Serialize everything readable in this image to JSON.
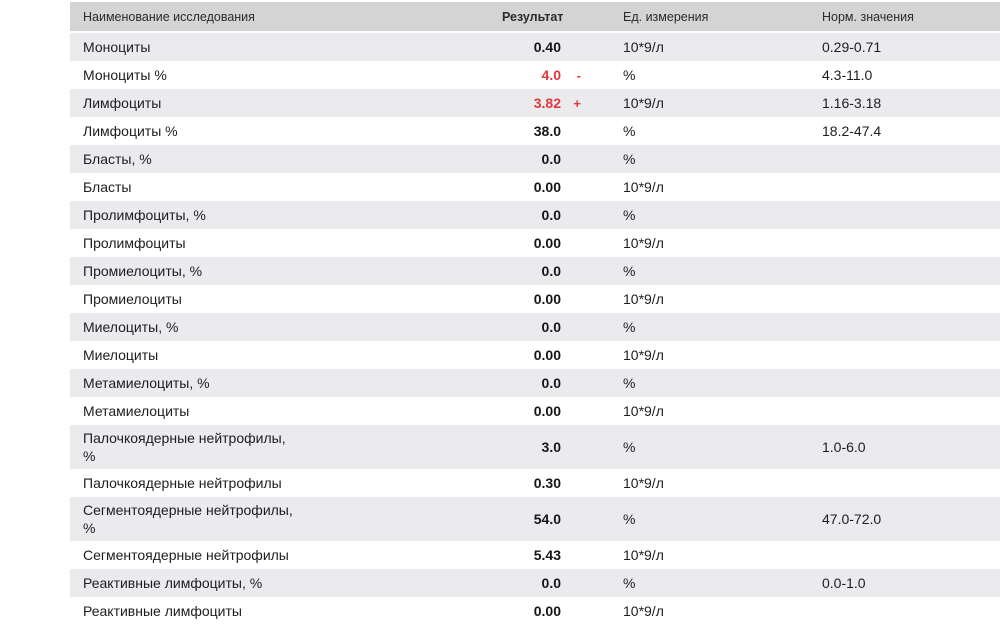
{
  "table": {
    "columns": {
      "name": "Наименование исследования",
      "result": "Результат",
      "unit": "Ед. измерения",
      "norm": "Норм. значения"
    },
    "colors": {
      "header_bg": "#d4d4d5",
      "alt_row_bg": "#ebebed",
      "abnormal_red": "#e0383f",
      "text": "#1d1d1f"
    },
    "rows": [
      {
        "name": "Моноциты",
        "result": "0.40",
        "flag": "",
        "unit": "10*9/л",
        "norm": "0.29-0.71",
        "abnormal": false
      },
      {
        "name": "Моноциты %",
        "result": "4.0",
        "flag": "-",
        "unit": "%",
        "norm": "4.3-11.0",
        "abnormal": true
      },
      {
        "name": "Лимфоциты",
        "result": "3.82",
        "flag": "+",
        "unit": "10*9/л",
        "norm": "1.16-3.18",
        "abnormal": true
      },
      {
        "name": "Лимфоциты %",
        "result": "38.0",
        "flag": "",
        "unit": "%",
        "norm": "18.2-47.4",
        "abnormal": false
      },
      {
        "name": "Бласты, %",
        "result": "0.0",
        "flag": "",
        "unit": "%",
        "norm": "",
        "abnormal": false
      },
      {
        "name": "Бласты",
        "result": "0.00",
        "flag": "",
        "unit": "10*9/л",
        "norm": "",
        "abnormal": false
      },
      {
        "name": "Пролимфоциты, %",
        "result": "0.0",
        "flag": "",
        "unit": "%",
        "norm": "",
        "abnormal": false
      },
      {
        "name": "Пролимфоциты",
        "result": "0.00",
        "flag": "",
        "unit": "10*9/л",
        "norm": "",
        "abnormal": false
      },
      {
        "name": "Промиелоциты, %",
        "result": "0.0",
        "flag": "",
        "unit": "%",
        "norm": "",
        "abnormal": false
      },
      {
        "name": "Промиелоциты",
        "result": "0.00",
        "flag": "",
        "unit": "10*9/л",
        "norm": "",
        "abnormal": false
      },
      {
        "name": "Миелоциты, %",
        "result": "0.0",
        "flag": "",
        "unit": "%",
        "norm": "",
        "abnormal": false
      },
      {
        "name": "Миелоциты",
        "result": "0.00",
        "flag": "",
        "unit": "10*9/л",
        "norm": "",
        "abnormal": false
      },
      {
        "name": "Метамиелоциты, %",
        "result": "0.0",
        "flag": "",
        "unit": "%",
        "norm": "",
        "abnormal": false
      },
      {
        "name": "Метамиелоциты",
        "result": "0.00",
        "flag": "",
        "unit": "10*9/л",
        "norm": "",
        "abnormal": false
      },
      {
        "name": "Палочкоядерные нейтрофилы,",
        "name_line2": "%",
        "result": "3.0",
        "flag": "",
        "unit": "%",
        "norm": "1.0-6.0",
        "abnormal": false
      },
      {
        "name": "Палочкоядерные нейтрофилы",
        "result": "0.30",
        "flag": "",
        "unit": "10*9/л",
        "norm": "",
        "abnormal": false
      },
      {
        "name": "Сегментоядерные нейтрофилы,",
        "name_line2": "%",
        "result": "54.0",
        "flag": "",
        "unit": "%",
        "norm": "47.0-72.0",
        "abnormal": false
      },
      {
        "name": "Сегментоядерные нейтрофилы",
        "result": "5.43",
        "flag": "",
        "unit": "10*9/л",
        "norm": "",
        "abnormal": false
      },
      {
        "name": "Реактивные лимфоциты, %",
        "result": "0.0",
        "flag": "",
        "unit": "%",
        "norm": "0.0-1.0",
        "abnormal": false
      },
      {
        "name": "Реактивные лимфоциты",
        "result": "0.00",
        "flag": "",
        "unit": "10*9/л",
        "norm": "",
        "abnormal": false
      }
    ]
  }
}
